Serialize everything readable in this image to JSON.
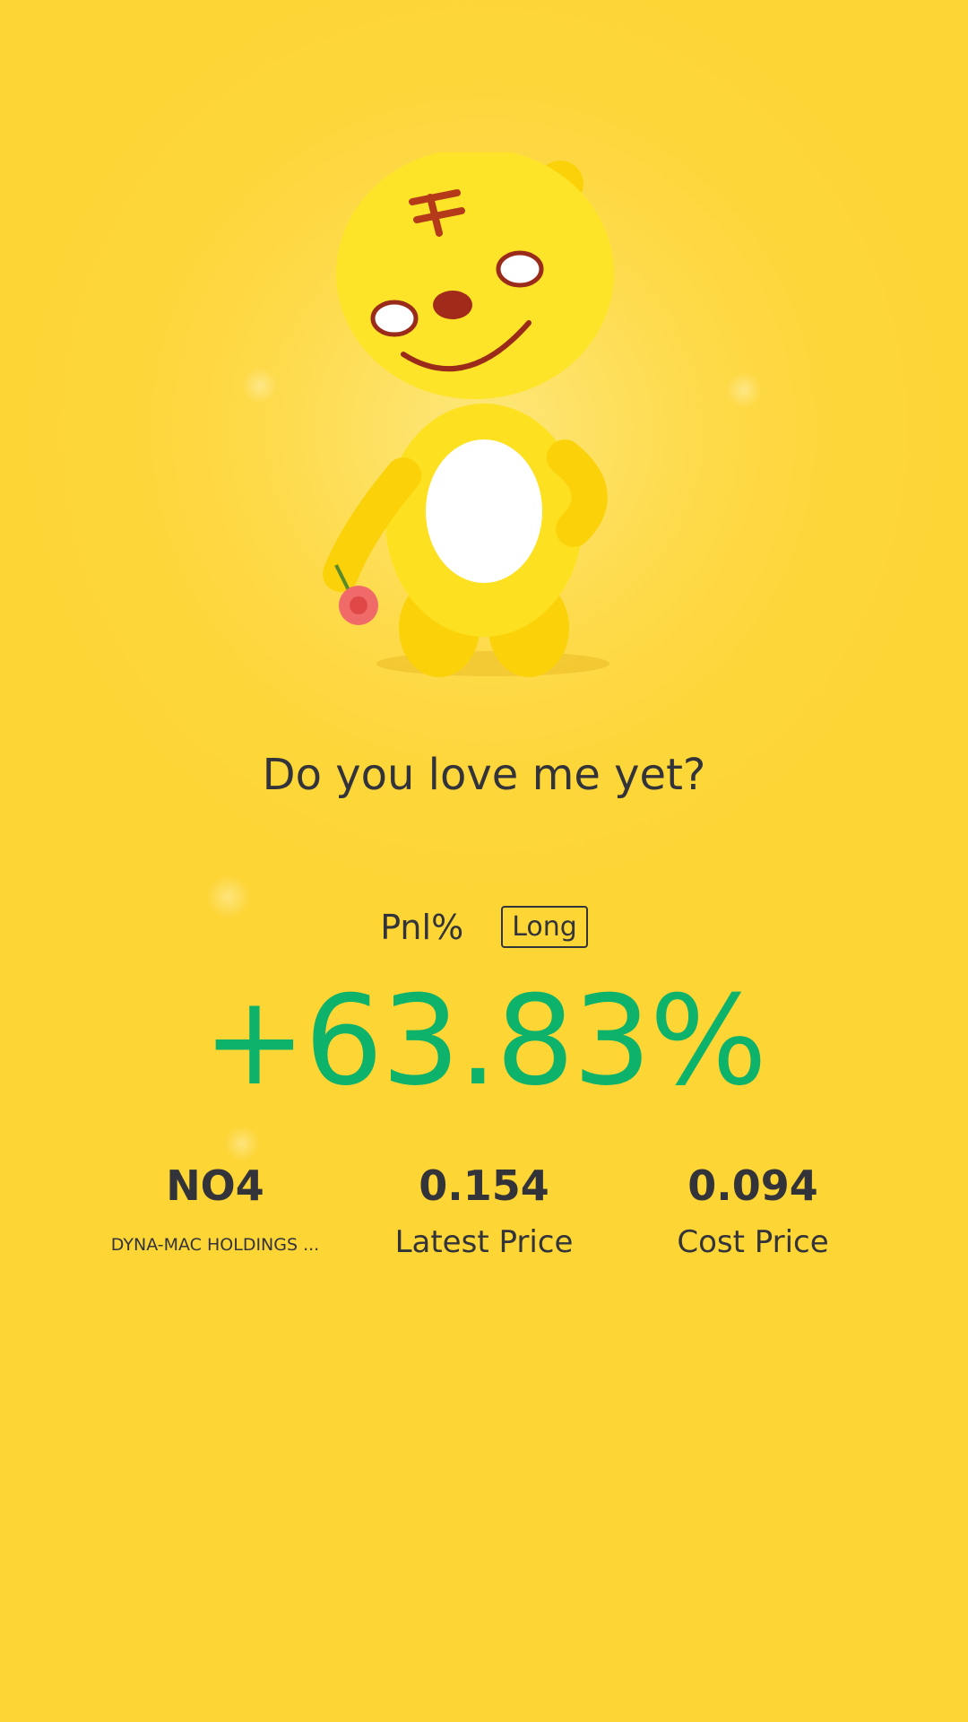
{
  "header": {
    "title": "Do you love me yet?"
  },
  "pnl": {
    "label": "Pnl%",
    "direction": "Long",
    "value": "+63.83%",
    "value_color": "#0db36a"
  },
  "stats": [
    {
      "value": "NO4",
      "label": "DYNA-MAC HOLDINGS ..."
    },
    {
      "value": "0.154",
      "label": "Latest Price"
    },
    {
      "value": "0.094",
      "label": "Cost Price"
    }
  ],
  "mascot": {
    "icon": "tiger-mascot-holding-flower"
  },
  "colors": {
    "background": "#fdd63a",
    "text": "#33333a"
  }
}
